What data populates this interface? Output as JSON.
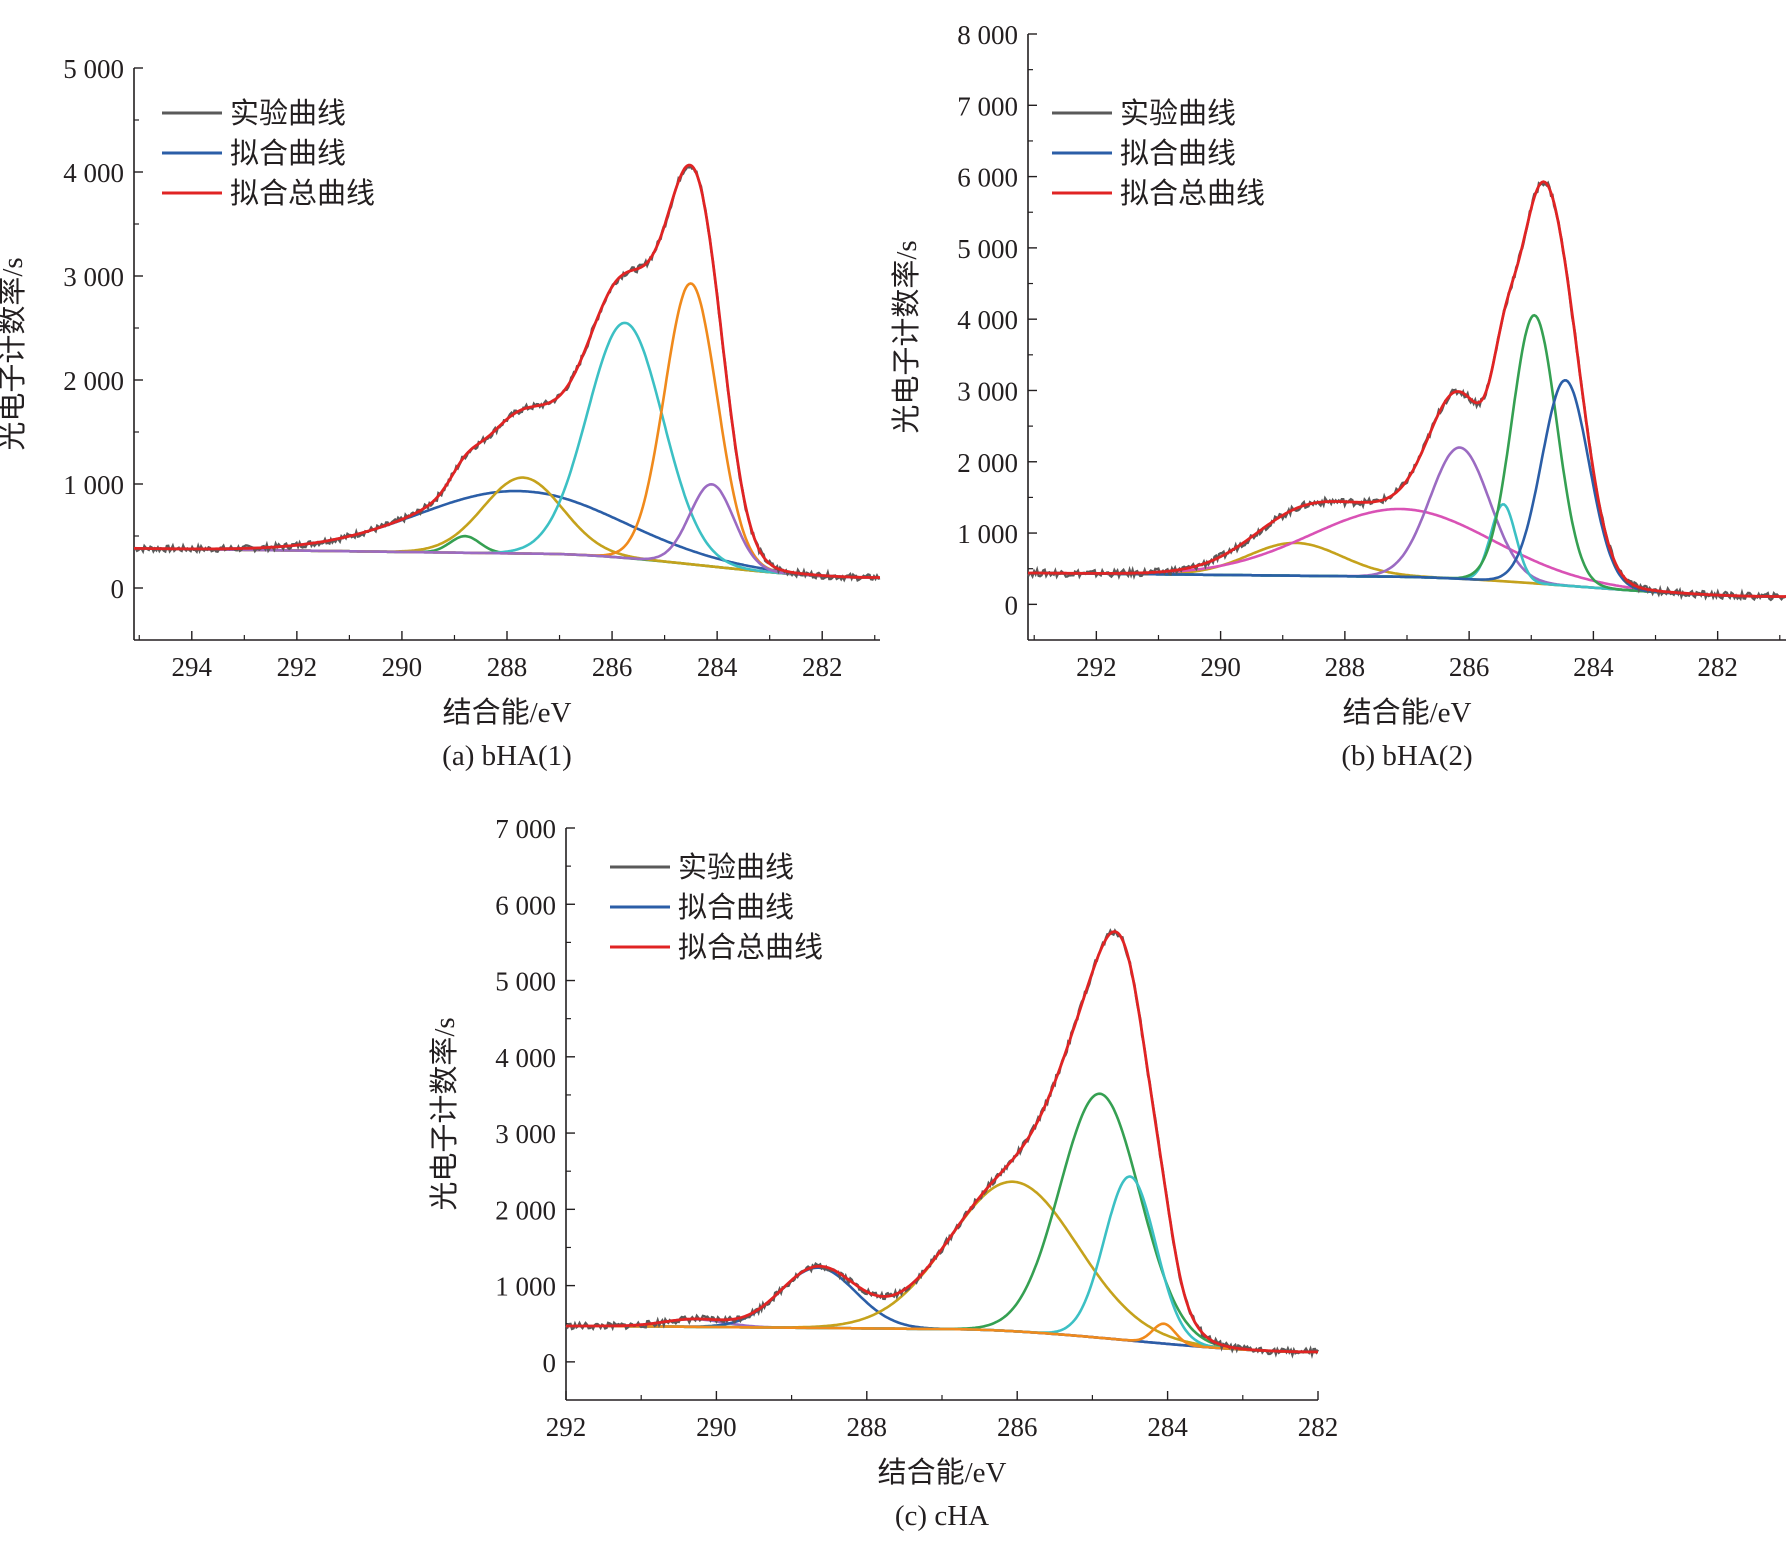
{
  "chart_data": [
    {
      "id": "a",
      "type": "line",
      "caption": "(a) bHA(1)",
      "xlabel": "结合能/eV",
      "ylabel": "光电子计数率/s",
      "x_reversed": true,
      "xlim": [
        295.1,
        280.9
      ],
      "ylim": [
        -500,
        5000
      ],
      "xticks": [
        294,
        292,
        290,
        288,
        286,
        284,
        282
      ],
      "xtick_labels": [
        "294",
        "292",
        "290",
        "288",
        "286",
        "284",
        "282"
      ],
      "yticks": [
        0,
        1000,
        2000,
        3000,
        4000,
        5000
      ],
      "ytick_labels": [
        "0",
        "1 000",
        "2 000",
        "3 000",
        "4 000",
        "5 000"
      ],
      "legend": {
        "position": "top-left",
        "entries": [
          {
            "label": "实验曲线",
            "color": "#5a5a5a"
          },
          {
            "label": "拟合曲线",
            "color": "#2b5ea7"
          },
          {
            "label": "拟合总曲线",
            "color": "#e02424"
          }
        ]
      },
      "background": {
        "color": "#7a4a45",
        "left_x": 295.0,
        "left_y": 380,
        "mid_x": 287.5,
        "mid_y": 330,
        "right_x": 281.0,
        "right_y": 100
      },
      "peaks": [
        {
          "center": 288.8,
          "height": 160,
          "width": 0.28,
          "color": "#35a052"
        },
        {
          "center": 287.8,
          "height": 600,
          "width": 1.9,
          "color": "#2b5ea7"
        },
        {
          "center": 287.7,
          "height": 730,
          "width": 0.75,
          "color": "#c5a21c"
        },
        {
          "center": 285.75,
          "height": 2260,
          "width": 0.72,
          "color": "#3cc0c4"
        },
        {
          "center": 284.5,
          "height": 2700,
          "width": 0.5,
          "color": "#f08a1c"
        },
        {
          "center": 284.1,
          "height": 790,
          "width": 0.42,
          "color": "#9b6bc2"
        }
      ]
    },
    {
      "id": "b",
      "type": "line",
      "caption": "(b) bHA(2)",
      "xlabel": "结合能/eV",
      "ylabel": "光电子计数率/s",
      "x_reversed": true,
      "xlim": [
        293.1,
        280.9
      ],
      "ylim": [
        -500,
        8000
      ],
      "xticks": [
        292,
        290,
        288,
        286,
        284,
        282
      ],
      "xtick_labels": [
        "292",
        "290",
        "288",
        "286",
        "284",
        "282"
      ],
      "yticks": [
        0,
        1000,
        2000,
        3000,
        4000,
        5000,
        6000,
        7000,
        8000
      ],
      "ytick_labels": [
        "0",
        "1 000",
        "2 000",
        "3 000",
        "4 000",
        "5 000",
        "6 000",
        "7 000",
        "8 000"
      ],
      "legend": {
        "position": "top-left",
        "entries": [
          {
            "label": "实验曲线",
            "color": "#5a5a5a"
          },
          {
            "label": "拟合曲线",
            "color": "#2b5ea7"
          },
          {
            "label": "拟合总曲线",
            "color": "#e02424"
          }
        ]
      },
      "background": {
        "color": "#7a4a45",
        "left_x": 293.0,
        "left_y": 440,
        "mid_x": 287.5,
        "mid_y": 390,
        "right_x": 281.0,
        "right_y": 110
      },
      "peaks": [
        {
          "center": 288.8,
          "height": 460,
          "width": 0.75,
          "color": "#c5a21c"
        },
        {
          "center": 287.1,
          "height": 950,
          "width": 1.45,
          "color": "#d952b5"
        },
        {
          "center": 286.15,
          "height": 1840,
          "width": 0.48,
          "color": "#9b6bc2"
        },
        {
          "center": 285.45,
          "height": 1080,
          "width": 0.2,
          "color": "#3cc0c4"
        },
        {
          "center": 284.95,
          "height": 3760,
          "width": 0.36,
          "color": "#35a052"
        },
        {
          "center": 284.45,
          "height": 2880,
          "width": 0.38,
          "color": "#2b5ea7"
        }
      ]
    },
    {
      "id": "c",
      "type": "line",
      "caption": "(c) cHA",
      "xlabel": "结合能/eV",
      "ylabel": "光电子计数率/s",
      "x_reversed": true,
      "xlim": [
        292,
        282
      ],
      "ylim": [
        -500,
        7000
      ],
      "xticks": [
        292,
        290,
        288,
        286,
        284,
        282
      ],
      "xtick_labels": [
        "292",
        "290",
        "288",
        "286",
        "284",
        "282"
      ],
      "yticks": [
        0,
        1000,
        2000,
        3000,
        4000,
        5000,
        6000,
        7000
      ],
      "ytick_labels": [
        "0",
        "1 000",
        "2 000",
        "3 000",
        "4 000",
        "5 000",
        "6 000",
        "7 000"
      ],
      "legend": {
        "position": "top-left",
        "entries": [
          {
            "label": "实验曲线",
            "color": "#5a5a5a"
          },
          {
            "label": "拟合曲线",
            "color": "#2b5ea7"
          },
          {
            "label": "拟合总曲线",
            "color": "#e02424"
          }
        ]
      },
      "background": {
        "color": "#7a4a45",
        "left_x": 291.5,
        "left_y": 470,
        "mid_x": 287.0,
        "mid_y": 430,
        "right_x": 282.0,
        "right_y": 130
      },
      "peaks": [
        {
          "center": 290.3,
          "height": 100,
          "width": 0.4,
          "color": "#9b6bc2"
        },
        {
          "center": 288.65,
          "height": 790,
          "width": 0.5,
          "color": "#2b5ea7"
        },
        {
          "center": 286.05,
          "height": 1960,
          "width": 0.85,
          "color": "#c5a21c"
        },
        {
          "center": 284.9,
          "height": 3200,
          "width": 0.53,
          "color": "#35a052"
        },
        {
          "center": 284.5,
          "height": 2150,
          "width": 0.34,
          "color": "#3cc0c4"
        },
        {
          "center": 284.05,
          "height": 260,
          "width": 0.15,
          "color": "#f08a1c"
        }
      ]
    }
  ]
}
